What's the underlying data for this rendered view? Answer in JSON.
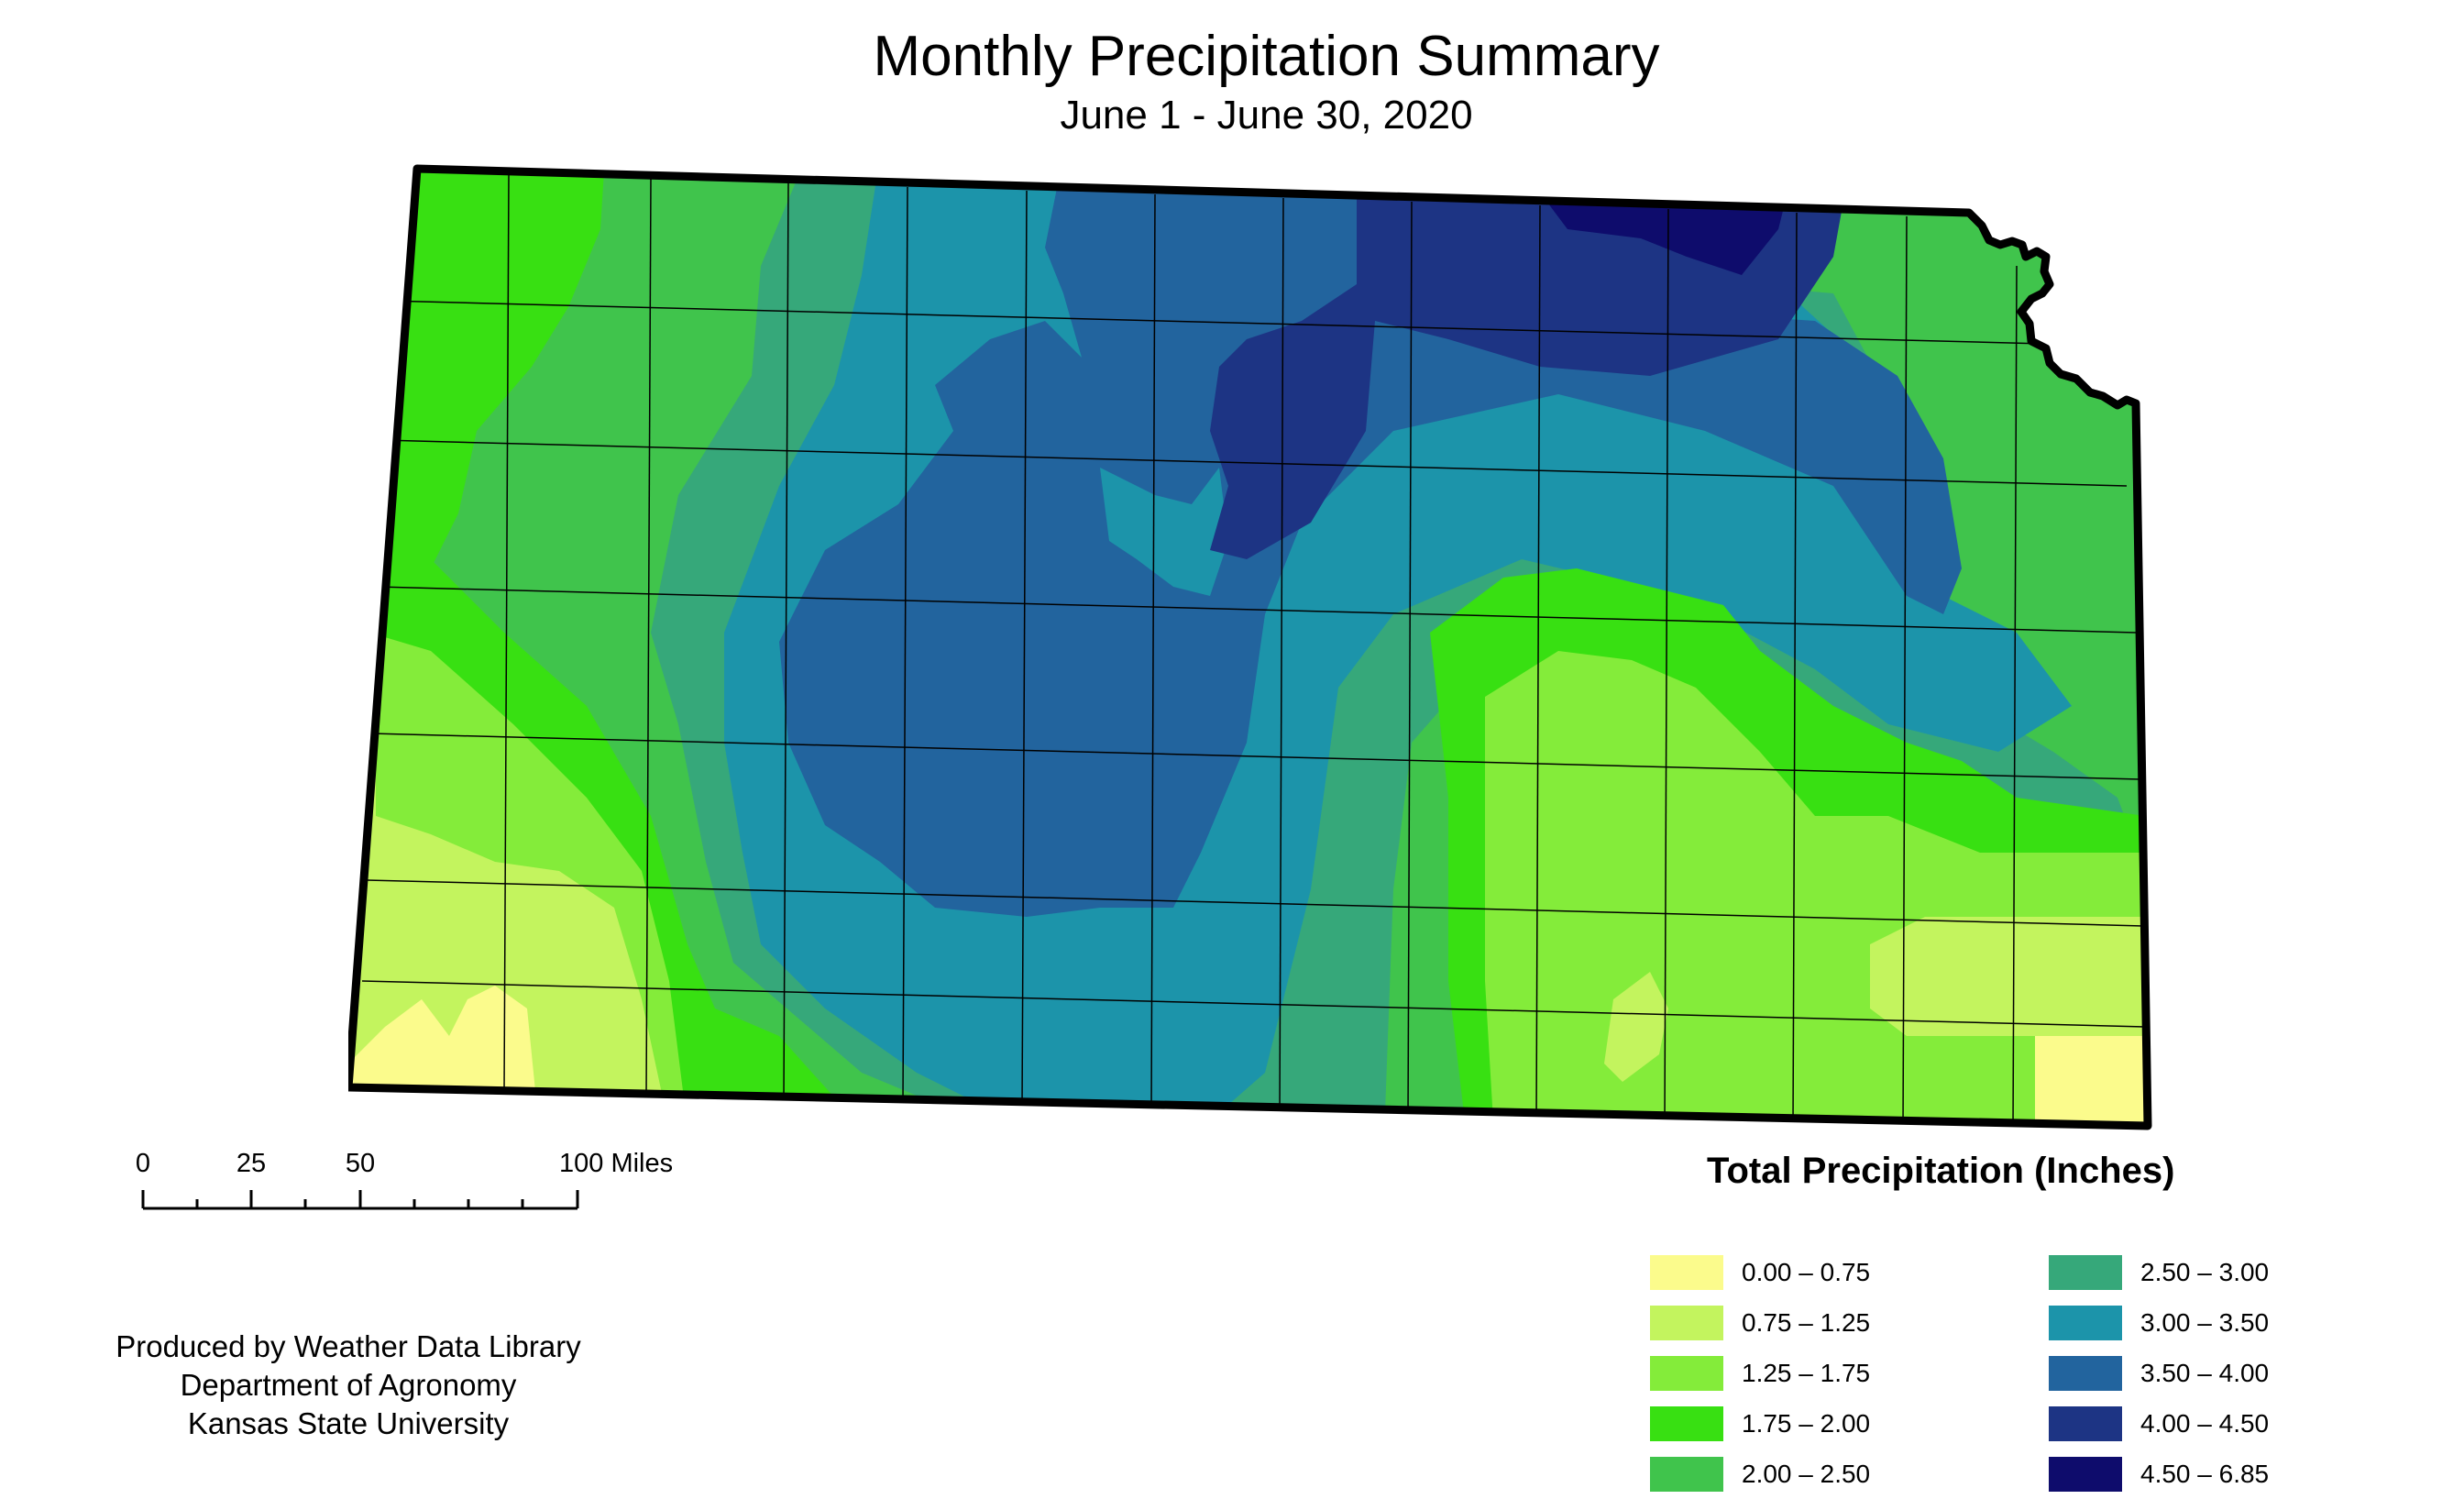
{
  "header": {
    "title": "Monthly Precipitation Summary",
    "subtitle": "June 1 - June 30, 2020"
  },
  "scale_bar": {
    "labels": [
      "0",
      "25",
      "50",
      "100 Miles"
    ]
  },
  "credits": {
    "line1": "Produced by Weather Data Library",
    "line2": "Department of Agronomy",
    "line3": "Kansas State University"
  },
  "legend": {
    "title": "Total Precipitation (Inches)",
    "items": [
      {
        "label": "0.00 – 0.75",
        "color": "#fbfb8c"
      },
      {
        "label": "0.75 – 1.25",
        "color": "#c3f45e"
      },
      {
        "label": "1.25 – 1.75",
        "color": "#84ec3a"
      },
      {
        "label": "1.75 – 2.00",
        "color": "#38e012"
      },
      {
        "label": "2.00 – 2.50",
        "color": "#40c44c"
      },
      {
        "label": "2.50 – 3.00",
        "color": "#36a87a"
      },
      {
        "label": "3.00 – 3.50",
        "color": "#1c94aa"
      },
      {
        "label": "3.50 – 4.00",
        "color": "#22649e"
      },
      {
        "label": "4.00 – 4.50",
        "color": "#1d3484"
      },
      {
        "label": "4.50 – 6.85",
        "color": "#0e0c6c"
      }
    ]
  }
}
